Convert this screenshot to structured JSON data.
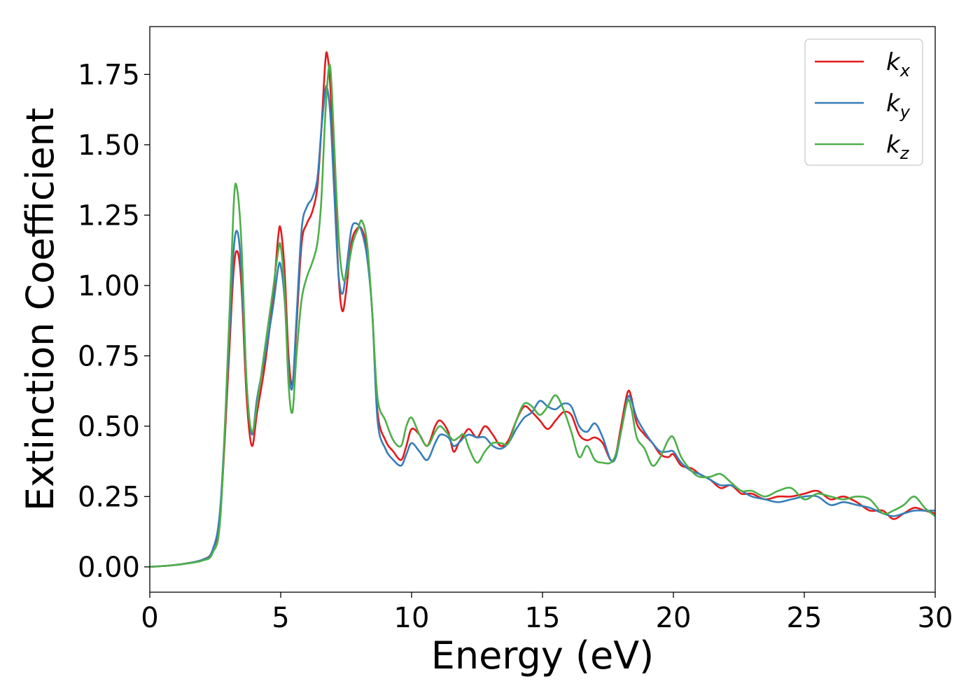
{
  "chart_data": {
    "type": "line",
    "title": "",
    "xlabel": "Energy (eV)",
    "ylabel": "Extinction Coefficient",
    "xlim": [
      0,
      30
    ],
    "ylim": [
      -0.09,
      1.92
    ],
    "x_ticks": [
      0,
      5,
      10,
      15,
      20,
      25,
      30
    ],
    "y_ticks": [
      0.0,
      0.25,
      0.5,
      0.75,
      1.0,
      1.25,
      1.5,
      1.75
    ],
    "x_tick_labels": [
      "0",
      "5",
      "10",
      "15",
      "20",
      "25",
      "30"
    ],
    "y_tick_labels": [
      "0.00",
      "0.25",
      "0.50",
      "0.75",
      "1.00",
      "1.25",
      "1.50",
      "1.75"
    ],
    "grid": false,
    "legend_position": "top-right",
    "series": [
      {
        "name": "k_x",
        "legend_base": "k",
        "legend_sub": "x",
        "color": "#e41a1c",
        "points": [
          [
            0,
            0.0
          ],
          [
            1.0,
            0.007
          ],
          [
            2.0,
            0.025
          ],
          [
            2.4,
            0.06
          ],
          [
            2.7,
            0.2
          ],
          [
            3.0,
            0.7
          ],
          [
            3.2,
            1.05
          ],
          [
            3.35,
            1.12
          ],
          [
            3.5,
            1.0
          ],
          [
            3.7,
            0.6
          ],
          [
            3.9,
            0.43
          ],
          [
            4.1,
            0.55
          ],
          [
            4.4,
            0.72
          ],
          [
            4.7,
            0.95
          ],
          [
            4.9,
            1.17
          ],
          [
            5.0,
            1.2
          ],
          [
            5.15,
            1.05
          ],
          [
            5.3,
            0.75
          ],
          [
            5.45,
            0.65
          ],
          [
            5.6,
            0.85
          ],
          [
            5.8,
            1.15
          ],
          [
            6.0,
            1.22
          ],
          [
            6.2,
            1.26
          ],
          [
            6.4,
            1.35
          ],
          [
            6.55,
            1.55
          ],
          [
            6.7,
            1.79
          ],
          [
            6.78,
            1.82
          ],
          [
            6.9,
            1.7
          ],
          [
            7.05,
            1.4
          ],
          [
            7.2,
            1.05
          ],
          [
            7.35,
            0.91
          ],
          [
            7.5,
            0.98
          ],
          [
            7.7,
            1.15
          ],
          [
            7.9,
            1.2
          ],
          [
            8.1,
            1.2
          ],
          [
            8.3,
            1.12
          ],
          [
            8.5,
            0.9
          ],
          [
            8.7,
            0.55
          ],
          [
            9.0,
            0.45
          ],
          [
            9.3,
            0.41
          ],
          [
            9.6,
            0.38
          ],
          [
            9.8,
            0.43
          ],
          [
            10.0,
            0.49
          ],
          [
            10.3,
            0.47
          ],
          [
            10.6,
            0.43
          ],
          [
            10.9,
            0.5
          ],
          [
            11.1,
            0.52
          ],
          [
            11.4,
            0.48
          ],
          [
            11.6,
            0.41
          ],
          [
            11.8,
            0.44
          ],
          [
            12.0,
            0.47
          ],
          [
            12.2,
            0.49
          ],
          [
            12.5,
            0.46
          ],
          [
            12.8,
            0.5
          ],
          [
            13.1,
            0.47
          ],
          [
            13.4,
            0.43
          ],
          [
            13.7,
            0.45
          ],
          [
            14.0,
            0.52
          ],
          [
            14.3,
            0.57
          ],
          [
            14.6,
            0.55
          ],
          [
            14.9,
            0.52
          ],
          [
            15.2,
            0.49
          ],
          [
            15.5,
            0.52
          ],
          [
            15.8,
            0.55
          ],
          [
            16.1,
            0.54
          ],
          [
            16.4,
            0.47
          ],
          [
            16.7,
            0.45
          ],
          [
            17.0,
            0.46
          ],
          [
            17.3,
            0.44
          ],
          [
            17.6,
            0.38
          ],
          [
            17.8,
            0.4
          ],
          [
            18.0,
            0.5
          ],
          [
            18.25,
            0.62
          ],
          [
            18.4,
            0.6
          ],
          [
            18.6,
            0.51
          ],
          [
            18.9,
            0.47
          ],
          [
            19.2,
            0.44
          ],
          [
            19.5,
            0.4
          ],
          [
            19.8,
            0.39
          ],
          [
            20.0,
            0.4
          ],
          [
            20.3,
            0.36
          ],
          [
            20.7,
            0.35
          ],
          [
            21.0,
            0.33
          ],
          [
            21.4,
            0.31
          ],
          [
            21.8,
            0.28
          ],
          [
            22.2,
            0.29
          ],
          [
            22.6,
            0.26
          ],
          [
            23.0,
            0.26
          ],
          [
            23.5,
            0.24
          ],
          [
            24.0,
            0.25
          ],
          [
            24.5,
            0.25
          ],
          [
            25.0,
            0.26
          ],
          [
            25.5,
            0.27
          ],
          [
            26.0,
            0.24
          ],
          [
            26.5,
            0.25
          ],
          [
            27.0,
            0.23
          ],
          [
            27.5,
            0.2
          ],
          [
            28.0,
            0.2
          ],
          [
            28.4,
            0.17
          ],
          [
            28.8,
            0.19
          ],
          [
            29.2,
            0.21
          ],
          [
            29.6,
            0.2
          ],
          [
            30.0,
            0.19
          ]
        ]
      },
      {
        "name": "k_y",
        "legend_base": "k",
        "legend_sub": "y",
        "color": "#377eb8",
        "points": [
          [
            0,
            0.0
          ],
          [
            1.0,
            0.007
          ],
          [
            2.0,
            0.025
          ],
          [
            2.4,
            0.06
          ],
          [
            2.7,
            0.22
          ],
          [
            3.0,
            0.75
          ],
          [
            3.2,
            1.12
          ],
          [
            3.35,
            1.19
          ],
          [
            3.5,
            1.05
          ],
          [
            3.7,
            0.65
          ],
          [
            3.9,
            0.47
          ],
          [
            4.1,
            0.6
          ],
          [
            4.4,
            0.75
          ],
          [
            4.7,
            0.92
          ],
          [
            4.9,
            1.06
          ],
          [
            5.0,
            1.07
          ],
          [
            5.15,
            0.95
          ],
          [
            5.3,
            0.7
          ],
          [
            5.45,
            0.64
          ],
          [
            5.6,
            0.88
          ],
          [
            5.8,
            1.2
          ],
          [
            6.0,
            1.28
          ],
          [
            6.2,
            1.31
          ],
          [
            6.4,
            1.38
          ],
          [
            6.55,
            1.55
          ],
          [
            6.7,
            1.69
          ],
          [
            6.78,
            1.7
          ],
          [
            6.9,
            1.6
          ],
          [
            7.05,
            1.32
          ],
          [
            7.2,
            1.05
          ],
          [
            7.35,
            0.97
          ],
          [
            7.5,
            1.05
          ],
          [
            7.7,
            1.2
          ],
          [
            7.9,
            1.22
          ],
          [
            8.1,
            1.19
          ],
          [
            8.3,
            1.1
          ],
          [
            8.5,
            0.9
          ],
          [
            8.7,
            0.52
          ],
          [
            9.0,
            0.42
          ],
          [
            9.3,
            0.38
          ],
          [
            9.6,
            0.36
          ],
          [
            9.8,
            0.4
          ],
          [
            10.0,
            0.44
          ],
          [
            10.3,
            0.41
          ],
          [
            10.6,
            0.38
          ],
          [
            10.9,
            0.44
          ],
          [
            11.1,
            0.47
          ],
          [
            11.4,
            0.46
          ],
          [
            11.6,
            0.43
          ],
          [
            11.8,
            0.44
          ],
          [
            12.0,
            0.46
          ],
          [
            12.2,
            0.47
          ],
          [
            12.5,
            0.46
          ],
          [
            12.8,
            0.46
          ],
          [
            13.1,
            0.43
          ],
          [
            13.4,
            0.42
          ],
          [
            13.7,
            0.44
          ],
          [
            14.0,
            0.49
          ],
          [
            14.3,
            0.53
          ],
          [
            14.6,
            0.55
          ],
          [
            14.9,
            0.59
          ],
          [
            15.2,
            0.57
          ],
          [
            15.5,
            0.56
          ],
          [
            15.8,
            0.58
          ],
          [
            16.1,
            0.57
          ],
          [
            16.4,
            0.5
          ],
          [
            16.7,
            0.48
          ],
          [
            17.0,
            0.51
          ],
          [
            17.3,
            0.46
          ],
          [
            17.6,
            0.38
          ],
          [
            17.8,
            0.39
          ],
          [
            18.0,
            0.48
          ],
          [
            18.25,
            0.6
          ],
          [
            18.4,
            0.59
          ],
          [
            18.6,
            0.53
          ],
          [
            18.9,
            0.48
          ],
          [
            19.2,
            0.44
          ],
          [
            19.5,
            0.41
          ],
          [
            19.8,
            0.41
          ],
          [
            20.0,
            0.41
          ],
          [
            20.3,
            0.37
          ],
          [
            20.7,
            0.34
          ],
          [
            21.0,
            0.33
          ],
          [
            21.4,
            0.31
          ],
          [
            21.8,
            0.29
          ],
          [
            22.2,
            0.29
          ],
          [
            22.6,
            0.27
          ],
          [
            23.0,
            0.25
          ],
          [
            23.5,
            0.24
          ],
          [
            24.0,
            0.23
          ],
          [
            24.5,
            0.24
          ],
          [
            25.0,
            0.25
          ],
          [
            25.5,
            0.25
          ],
          [
            26.0,
            0.22
          ],
          [
            26.5,
            0.23
          ],
          [
            27.0,
            0.22
          ],
          [
            27.5,
            0.21
          ],
          [
            28.0,
            0.19
          ],
          [
            28.4,
            0.18
          ],
          [
            28.8,
            0.19
          ],
          [
            29.2,
            0.2
          ],
          [
            29.6,
            0.2
          ],
          [
            30.0,
            0.2
          ]
        ]
      },
      {
        "name": "k_z",
        "legend_base": "k",
        "legend_sub": "z",
        "color": "#4daf4a",
        "points": [
          [
            0,
            0.0
          ],
          [
            1.0,
            0.007
          ],
          [
            2.0,
            0.022
          ],
          [
            2.4,
            0.05
          ],
          [
            2.7,
            0.18
          ],
          [
            3.0,
            0.8
          ],
          [
            3.2,
            1.28
          ],
          [
            3.32,
            1.35
          ],
          [
            3.5,
            1.15
          ],
          [
            3.7,
            0.65
          ],
          [
            3.9,
            0.48
          ],
          [
            4.1,
            0.58
          ],
          [
            4.4,
            0.78
          ],
          [
            4.7,
            0.98
          ],
          [
            4.9,
            1.12
          ],
          [
            5.0,
            1.14
          ],
          [
            5.15,
            0.98
          ],
          [
            5.3,
            0.65
          ],
          [
            5.45,
            0.55
          ],
          [
            5.6,
            0.75
          ],
          [
            5.8,
            0.95
          ],
          [
            6.0,
            1.03
          ],
          [
            6.2,
            1.08
          ],
          [
            6.4,
            1.15
          ],
          [
            6.55,
            1.3
          ],
          [
            6.7,
            1.6
          ],
          [
            6.85,
            1.78
          ],
          [
            6.95,
            1.7
          ],
          [
            7.1,
            1.38
          ],
          [
            7.25,
            1.12
          ],
          [
            7.4,
            1.02
          ],
          [
            7.55,
            1.05
          ],
          [
            7.75,
            1.15
          ],
          [
            7.95,
            1.2
          ],
          [
            8.1,
            1.23
          ],
          [
            8.3,
            1.15
          ],
          [
            8.5,
            0.9
          ],
          [
            8.7,
            0.6
          ],
          [
            9.0,
            0.52
          ],
          [
            9.3,
            0.45
          ],
          [
            9.6,
            0.43
          ],
          [
            9.8,
            0.5
          ],
          [
            10.0,
            0.53
          ],
          [
            10.3,
            0.47
          ],
          [
            10.6,
            0.43
          ],
          [
            10.9,
            0.48
          ],
          [
            11.1,
            0.5
          ],
          [
            11.4,
            0.47
          ],
          [
            11.6,
            0.45
          ],
          [
            11.8,
            0.46
          ],
          [
            12.0,
            0.47
          ],
          [
            12.2,
            0.42
          ],
          [
            12.5,
            0.37
          ],
          [
            12.8,
            0.41
          ],
          [
            13.1,
            0.44
          ],
          [
            13.4,
            0.44
          ],
          [
            13.7,
            0.44
          ],
          [
            14.0,
            0.52
          ],
          [
            14.3,
            0.58
          ],
          [
            14.6,
            0.57
          ],
          [
            14.9,
            0.54
          ],
          [
            15.2,
            0.57
          ],
          [
            15.5,
            0.61
          ],
          [
            15.8,
            0.56
          ],
          [
            16.1,
            0.48
          ],
          [
            16.4,
            0.39
          ],
          [
            16.7,
            0.43
          ],
          [
            17.0,
            0.38
          ],
          [
            17.3,
            0.37
          ],
          [
            17.6,
            0.37
          ],
          [
            17.8,
            0.4
          ],
          [
            18.0,
            0.48
          ],
          [
            18.25,
            0.59
          ],
          [
            18.4,
            0.56
          ],
          [
            18.6,
            0.46
          ],
          [
            18.9,
            0.42
          ],
          [
            19.2,
            0.36
          ],
          [
            19.5,
            0.39
          ],
          [
            19.8,
            0.45
          ],
          [
            20.0,
            0.46
          ],
          [
            20.3,
            0.39
          ],
          [
            20.7,
            0.34
          ],
          [
            21.0,
            0.32
          ],
          [
            21.4,
            0.32
          ],
          [
            21.8,
            0.33
          ],
          [
            22.2,
            0.3
          ],
          [
            22.6,
            0.27
          ],
          [
            23.0,
            0.27
          ],
          [
            23.5,
            0.25
          ],
          [
            24.0,
            0.27
          ],
          [
            24.5,
            0.28
          ],
          [
            25.0,
            0.24
          ],
          [
            25.5,
            0.26
          ],
          [
            26.0,
            0.25
          ],
          [
            26.5,
            0.24
          ],
          [
            27.0,
            0.25
          ],
          [
            27.5,
            0.24
          ],
          [
            28.0,
            0.19
          ],
          [
            28.4,
            0.2
          ],
          [
            28.8,
            0.22
          ],
          [
            29.2,
            0.25
          ],
          [
            29.6,
            0.21
          ],
          [
            30.0,
            0.18
          ]
        ]
      }
    ]
  }
}
